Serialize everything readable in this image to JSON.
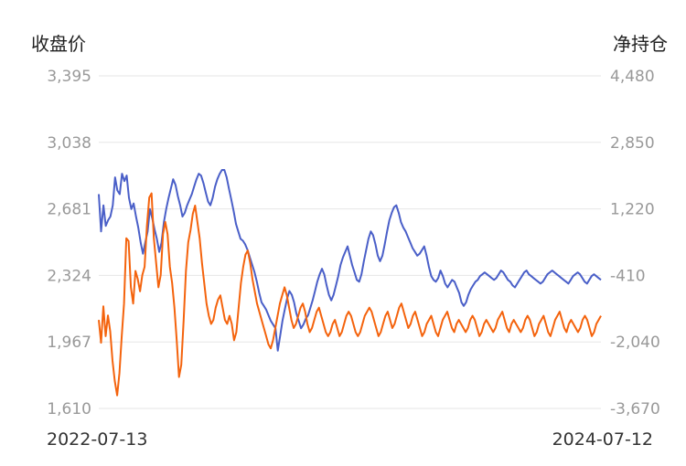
{
  "left_axis_title": "收盘价",
  "right_axis_title": "净持仓",
  "x_start_label": "2022-07-13",
  "x_end_label": "2024-07-12",
  "colors": {
    "close": "#4a5fc8",
    "net": "#f4630d",
    "grid": "#e6e6e6",
    "tick": "#999999"
  },
  "chart_data": {
    "type": "line",
    "title": "",
    "grid": true,
    "x": {
      "start": "2022-07-13",
      "end": "2024-07-12"
    },
    "y_left": {
      "label": "收盘价",
      "range": [
        1610,
        3395
      ],
      "ticks": [
        "3,395",
        "3,038",
        "2,681",
        "2,324",
        "1,967",
        "1,610"
      ]
    },
    "y_right": {
      "label": "净持仓",
      "range": [
        -3670,
        4480
      ],
      "ticks": [
        "4,480",
        "2,850",
        "1,220",
        "-410",
        "-2,040",
        "-3,670"
      ]
    },
    "series": [
      {
        "axis": "left",
        "color": "#4a5fc8",
        "values": [
          2760,
          2560,
          2700,
          2590,
          2620,
          2640,
          2700,
          2850,
          2780,
          2760,
          2870,
          2830,
          2860,
          2740,
          2680,
          2710,
          2640,
          2580,
          2500,
          2440,
          2500,
          2560,
          2680,
          2630,
          2570,
          2520,
          2450,
          2500,
          2610,
          2680,
          2740,
          2790,
          2840,
          2810,
          2750,
          2700,
          2640,
          2660,
          2700,
          2730,
          2760,
          2800,
          2840,
          2870,
          2860,
          2820,
          2770,
          2720,
          2700,
          2740,
          2800,
          2840,
          2870,
          2890,
          2890,
          2850,
          2790,
          2730,
          2670,
          2600,
          2560,
          2520,
          2510,
          2490,
          2460,
          2420,
          2380,
          2340,
          2290,
          2230,
          2180,
          2160,
          2140,
          2110,
          2080,
          2060,
          2040,
          1920,
          2000,
          2080,
          2140,
          2200,
          2240,
          2220,
          2180,
          2120,
          2080,
          2040,
          2060,
          2090,
          2110,
          2150,
          2190,
          2240,
          2290,
          2330,
          2360,
          2330,
          2270,
          2220,
          2190,
          2220,
          2270,
          2320,
          2380,
          2420,
          2450,
          2480,
          2430,
          2380,
          2340,
          2300,
          2290,
          2330,
          2400,
          2460,
          2520,
          2560,
          2540,
          2490,
          2430,
          2400,
          2430,
          2490,
          2560,
          2620,
          2660,
          2690,
          2700,
          2660,
          2610,
          2580,
          2560,
          2530,
          2500,
          2470,
          2450,
          2430,
          2440,
          2460,
          2480,
          2430,
          2370,
          2320,
          2300,
          2290,
          2310,
          2350,
          2320,
          2280,
          2260,
          2280,
          2300,
          2290,
          2260,
          2230,
          2180,
          2160,
          2180,
          2220,
          2250,
          2270,
          2290,
          2300,
          2320,
          2330,
          2340,
          2330,
          2320,
          2310,
          2300,
          2310,
          2330,
          2350,
          2340,
          2320,
          2300,
          2290,
          2270,
          2260,
          2280,
          2300,
          2320,
          2340,
          2350,
          2330,
          2320,
          2310,
          2300,
          2290,
          2280,
          2290,
          2310,
          2330,
          2340,
          2350,
          2340,
          2330,
          2320,
          2310,
          2300,
          2290,
          2280,
          2300,
          2320,
          2330,
          2340,
          2330,
          2310,
          2290,
          2280,
          2300,
          2320,
          2330,
          2320,
          2310,
          2300
        ]
      },
      {
        "axis": "right",
        "color": "#f4630d",
        "values": [
          -1500,
          -2060,
          -1170,
          -1900,
          -1390,
          -1780,
          -2500,
          -3000,
          -3350,
          -2800,
          -1900,
          -1100,
          500,
          430,
          -700,
          -1100,
          -300,
          -500,
          -800,
          -400,
          -200,
          800,
          1500,
          1600,
          500,
          -100,
          -700,
          -400,
          600,
          900,
          600,
          -200,
          -600,
          -1200,
          -2000,
          -2900,
          -2600,
          -1500,
          -300,
          400,
          700,
          1100,
          1300,
          900,
          500,
          -100,
          -600,
          -1100,
          -1400,
          -1600,
          -1500,
          -1200,
          -1000,
          -900,
          -1200,
          -1500,
          -1600,
          -1400,
          -1600,
          -2000,
          -1800,
          -1200,
          -600,
          -200,
          100,
          200,
          -100,
          -500,
          -800,
          -1100,
          -1300,
          -1500,
          -1700,
          -1900,
          -2100,
          -2200,
          -2000,
          -1700,
          -1400,
          -1100,
          -900,
          -700,
          -900,
          -1200,
          -1500,
          -1700,
          -1600,
          -1400,
          -1200,
          -1100,
          -1300,
          -1600,
          -1800,
          -1700,
          -1500,
          -1300,
          -1200,
          -1400,
          -1600,
          -1800,
          -1900,
          -1800,
          -1600,
          -1500,
          -1700,
          -1900,
          -1800,
          -1600,
          -1400,
          -1300,
          -1400,
          -1600,
          -1800,
          -1900,
          -1800,
          -1600,
          -1400,
          -1300,
          -1200,
          -1300,
          -1500,
          -1700,
          -1900,
          -1800,
          -1600,
          -1400,
          -1300,
          -1500,
          -1700,
          -1600,
          -1400,
          -1200,
          -1100,
          -1300,
          -1500,
          -1700,
          -1600,
          -1400,
          -1300,
          -1500,
          -1700,
          -1900,
          -1800,
          -1600,
          -1500,
          -1400,
          -1600,
          -1800,
          -1900,
          -1700,
          -1500,
          -1400,
          -1300,
          -1500,
          -1700,
          -1800,
          -1600,
          -1500,
          -1600,
          -1700,
          -1800,
          -1700,
          -1500,
          -1400,
          -1500,
          -1700,
          -1900,
          -1800,
          -1600,
          -1500,
          -1600,
          -1700,
          -1800,
          -1700,
          -1500,
          -1400,
          -1300,
          -1500,
          -1700,
          -1800,
          -1600,
          -1500,
          -1600,
          -1700,
          -1800,
          -1700,
          -1500,
          -1400,
          -1500,
          -1700,
          -1900,
          -1800,
          -1600,
          -1500,
          -1400,
          -1600,
          -1800,
          -1900,
          -1700,
          -1500,
          -1400,
          -1300,
          -1500,
          -1700,
          -1800,
          -1600,
          -1500,
          -1600,
          -1700,
          -1800,
          -1700,
          -1500,
          -1400,
          -1500,
          -1700,
          -1900,
          -1800,
          -1600,
          -1500,
          -1400
        ]
      }
    ]
  }
}
